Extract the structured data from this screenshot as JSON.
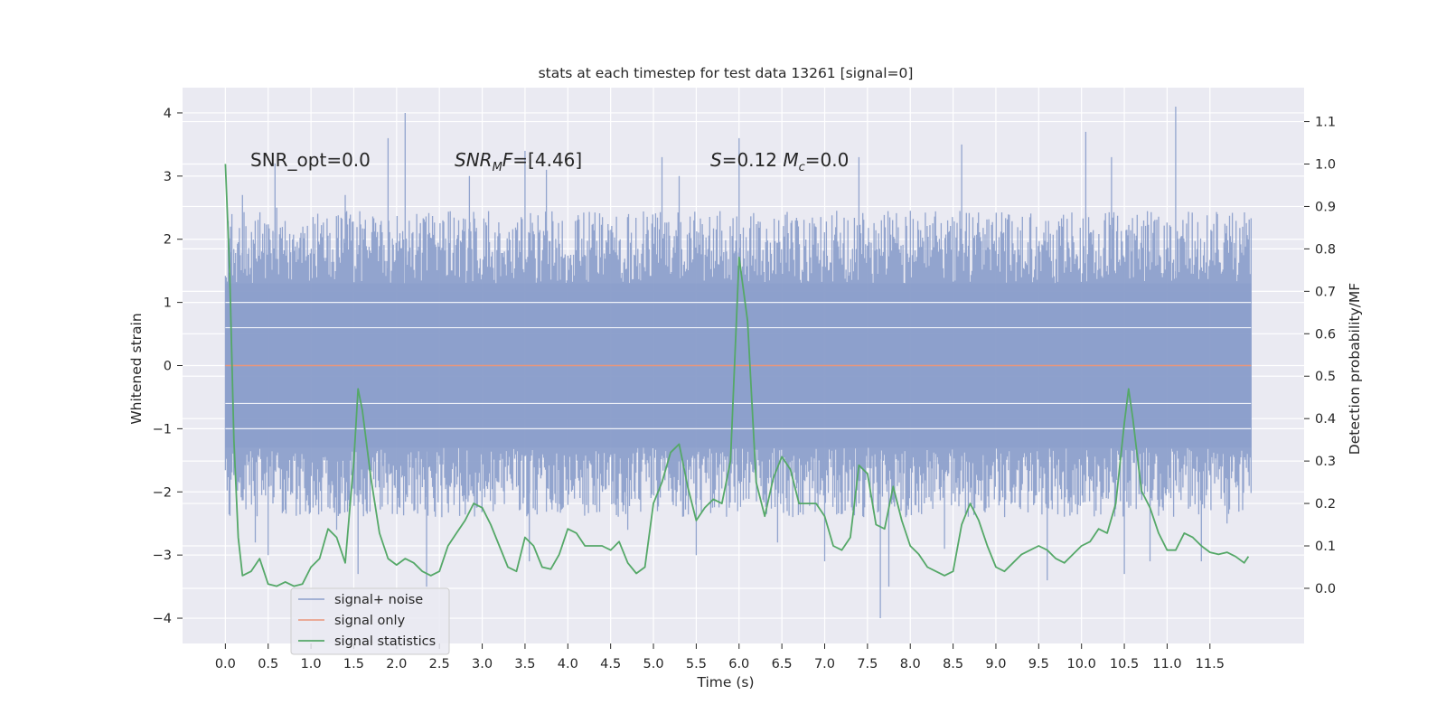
{
  "chart_data": {
    "type": "line",
    "title": "stats at each timestep for test data 13261 [signal=0]",
    "xlabel": "Time (s)",
    "ylabel": "Whitened strain",
    "y2label": "Detection probability/MF",
    "xlim": [
      -0.5,
      12.6
    ],
    "ylim": [
      -4.4,
      4.4
    ],
    "y2lim": [
      -0.13,
      1.18
    ],
    "xticks": [
      0.0,
      0.5,
      1.0,
      1.5,
      2.0,
      2.5,
      3.0,
      3.5,
      4.0,
      4.5,
      5.0,
      5.5,
      6.0,
      6.5,
      7.0,
      7.5,
      8.0,
      8.5,
      9.0,
      9.5,
      10.0,
      10.5,
      11.0,
      11.5
    ],
    "xtick_labels": [
      "0.0",
      "0.5",
      "1.0",
      "1.5",
      "2.0",
      "2.5",
      "3.0",
      "3.5",
      "4.0",
      "4.5",
      "5.0",
      "5.5",
      "6.0",
      "6.5",
      "7.0",
      "7.5",
      "8.0",
      "8.5",
      "9.0",
      "9.5",
      "10.0",
      "10.5",
      "11.0",
      "11.5"
    ],
    "yticks": [
      4,
      3,
      2,
      1,
      0,
      -1,
      -2,
      -3,
      -4
    ],
    "ytick_labels": [
      "4",
      "3",
      "2",
      "1",
      "0",
      "−1",
      "−2",
      "−3",
      "−4"
    ],
    "y2ticks": [
      1.1,
      1.0,
      0.9,
      0.8,
      0.7,
      0.6,
      0.5,
      0.4,
      0.3,
      0.2,
      0.1,
      0.0
    ],
    "y2tick_labels": [
      "1.1",
      "1.0",
      "0.9",
      "0.8",
      "0.7",
      "0.6",
      "0.5",
      "0.4",
      "0.3",
      "0.2",
      "0.1",
      "0.0"
    ],
    "grid": true,
    "legend_location": "lower-left",
    "annotations": [
      {
        "text": "SNR_opt=0.0",
        "x": 0.2,
        "y": 3.3
      },
      {
        "text": "SNR_MF=[4.46]",
        "x": 2.6,
        "y": 3.3
      },
      {
        "text": "S=0.12   M_c=0.0",
        "x": 5.6,
        "y": 3.3
      }
    ],
    "series": [
      {
        "name": "signal+ noise",
        "axis": "left",
        "color": "#8da0cb",
        "kind": "noise",
        "t_start": 0.0,
        "t_end": 11.98,
        "band": [
          -1.3,
          1.3
        ],
        "spikes": [
          {
            "t": 0.06,
            "v": 2.2
          },
          {
            "t": 0.2,
            "v": 2.7
          },
          {
            "t": 0.6,
            "v": 2.5
          },
          {
            "t": 0.58,
            "v": 3.2
          },
          {
            "t": 1.4,
            "v": 2.7
          },
          {
            "t": 1.9,
            "v": 3.6
          },
          {
            "t": 2.1,
            "v": 4.0
          },
          {
            "t": 2.85,
            "v": 3.0
          },
          {
            "t": 3.5,
            "v": 3.4
          },
          {
            "t": 3.75,
            "v": 3.1
          },
          {
            "t": 5.1,
            "v": 3.3
          },
          {
            "t": 5.3,
            "v": 3.0
          },
          {
            "t": 6.0,
            "v": 3.6
          },
          {
            "t": 7.4,
            "v": 3.3
          },
          {
            "t": 8.6,
            "v": 3.5
          },
          {
            "t": 10.05,
            "v": 3.7
          },
          {
            "t": 10.35,
            "v": 3.3
          },
          {
            "t": 11.1,
            "v": 4.1
          },
          {
            "t": 11.95,
            "v": 2.0
          },
          {
            "t": 0.35,
            "v": -2.8
          },
          {
            "t": 0.5,
            "v": -3.0
          },
          {
            "t": 1.3,
            "v": -2.6
          },
          {
            "t": 1.55,
            "v": -3.3
          },
          {
            "t": 2.35,
            "v": -3.5
          },
          {
            "t": 3.55,
            "v": -3.1
          },
          {
            "t": 4.7,
            "v": -2.6
          },
          {
            "t": 5.5,
            "v": -3.0
          },
          {
            "t": 6.45,
            "v": -2.8
          },
          {
            "t": 7.0,
            "v": -3.1
          },
          {
            "t": 7.65,
            "v": -4.0
          },
          {
            "t": 7.75,
            "v": -3.5
          },
          {
            "t": 8.4,
            "v": -2.9
          },
          {
            "t": 9.6,
            "v": -3.4
          },
          {
            "t": 10.5,
            "v": -3.3
          },
          {
            "t": 10.8,
            "v": -3.1
          },
          {
            "t": 11.4,
            "v": -3.1
          },
          {
            "t": 11.7,
            "v": -2.5
          }
        ]
      },
      {
        "name": "signal only",
        "axis": "left",
        "color": "#e9967a",
        "kind": "line",
        "x": [
          0.0,
          11.98
        ],
        "y": [
          0.0,
          0.0
        ]
      },
      {
        "name": "signal statistics",
        "axis": "right",
        "color": "#55a868",
        "kind": "line",
        "x": [
          0.0,
          0.05,
          0.1,
          0.15,
          0.2,
          0.3,
          0.4,
          0.5,
          0.6,
          0.7,
          0.8,
          0.9,
          1.0,
          1.1,
          1.2,
          1.3,
          1.4,
          1.5,
          1.55,
          1.6,
          1.7,
          1.8,
          1.9,
          2.0,
          2.1,
          2.2,
          2.3,
          2.4,
          2.5,
          2.6,
          2.7,
          2.8,
          2.9,
          3.0,
          3.1,
          3.2,
          3.3,
          3.4,
          3.5,
          3.6,
          3.7,
          3.8,
          3.9,
          4.0,
          4.1,
          4.2,
          4.3,
          4.4,
          4.5,
          4.6,
          4.7,
          4.8,
          4.9,
          5.0,
          5.1,
          5.2,
          5.3,
          5.4,
          5.5,
          5.6,
          5.7,
          5.8,
          5.9,
          6.0,
          6.1,
          6.2,
          6.3,
          6.4,
          6.5,
          6.6,
          6.7,
          6.8,
          6.9,
          7.0,
          7.1,
          7.2,
          7.3,
          7.4,
          7.5,
          7.6,
          7.7,
          7.8,
          7.9,
          8.0,
          8.1,
          8.2,
          8.3,
          8.4,
          8.5,
          8.6,
          8.7,
          8.8,
          8.9,
          9.0,
          9.1,
          9.2,
          9.3,
          9.4,
          9.5,
          9.6,
          9.7,
          9.8,
          9.9,
          10.0,
          10.1,
          10.2,
          10.3,
          10.4,
          10.5,
          10.55,
          10.6,
          10.7,
          10.8,
          10.9,
          11.0,
          11.1,
          11.2,
          11.3,
          11.4,
          11.5,
          11.6,
          11.7,
          11.8,
          11.9,
          11.95
        ],
        "y": [
          1.0,
          0.75,
          0.35,
          0.12,
          0.03,
          0.04,
          0.07,
          0.01,
          0.005,
          0.015,
          0.005,
          0.01,
          0.05,
          0.07,
          0.14,
          0.12,
          0.06,
          0.3,
          0.47,
          0.42,
          0.26,
          0.13,
          0.07,
          0.055,
          0.07,
          0.06,
          0.04,
          0.03,
          0.04,
          0.1,
          0.13,
          0.16,
          0.2,
          0.19,
          0.15,
          0.1,
          0.05,
          0.04,
          0.12,
          0.1,
          0.05,
          0.045,
          0.08,
          0.14,
          0.13,
          0.1,
          0.1,
          0.1,
          0.09,
          0.11,
          0.06,
          0.035,
          0.05,
          0.2,
          0.25,
          0.32,
          0.34,
          0.24,
          0.16,
          0.19,
          0.21,
          0.2,
          0.3,
          0.78,
          0.63,
          0.25,
          0.17,
          0.26,
          0.31,
          0.28,
          0.2,
          0.2,
          0.2,
          0.17,
          0.1,
          0.09,
          0.12,
          0.29,
          0.27,
          0.15,
          0.14,
          0.24,
          0.16,
          0.1,
          0.08,
          0.05,
          0.04,
          0.03,
          0.04,
          0.15,
          0.2,
          0.16,
          0.1,
          0.05,
          0.04,
          0.06,
          0.08,
          0.09,
          0.1,
          0.09,
          0.07,
          0.06,
          0.08,
          0.1,
          0.11,
          0.14,
          0.13,
          0.2,
          0.39,
          0.47,
          0.4,
          0.23,
          0.19,
          0.13,
          0.09,
          0.09,
          0.13,
          0.12,
          0.1,
          0.085,
          0.08,
          0.085,
          0.075,
          0.06,
          0.075
        ]
      }
    ]
  }
}
